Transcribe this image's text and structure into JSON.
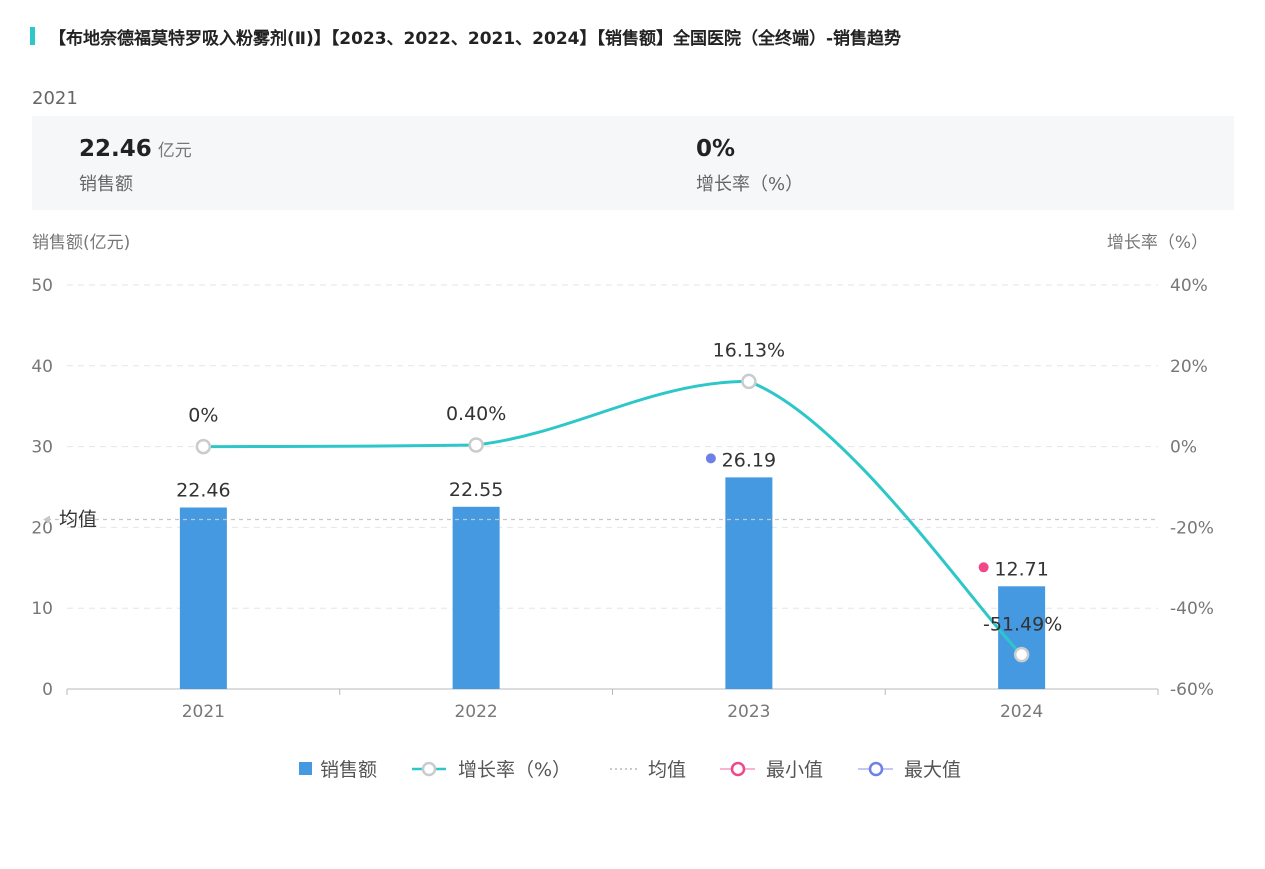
{
  "header": {
    "title": "【布地奈德福莫特罗吸入粉雾剂(Ⅱ)】【2023、2022、2021、2024】【销售额】全国医院（全终端）-销售趋势",
    "accent_color": "#2ec7c9"
  },
  "summary": {
    "year": "2021",
    "sales_value": "22.46",
    "sales_unit": "亿元",
    "sales_label": "销售额",
    "growth_value": "0%",
    "growth_label": "增长率（%）"
  },
  "chart_data": {
    "type": "bar",
    "categories": [
      "2021",
      "2022",
      "2023",
      "2024"
    ],
    "left_axis": {
      "label": "销售额(亿元)",
      "ylim": [
        0,
        50
      ],
      "ticks": [
        "0",
        "10",
        "20",
        "30",
        "40",
        "50"
      ]
    },
    "right_axis": {
      "label": "增长率（%）",
      "ylim": [
        -60,
        40
      ],
      "ticks": [
        "-60%",
        "-40%",
        "-20%",
        "0%",
        "20%",
        "40%"
      ]
    },
    "series": [
      {
        "name": "销售额",
        "type": "bar",
        "color": "#4599e0",
        "values": [
          22.46,
          22.55,
          26.19,
          12.71
        ],
        "labels": [
          "22.46",
          "22.55",
          "26.19",
          "12.71"
        ]
      },
      {
        "name": "增长率（%）",
        "type": "line",
        "color": "#2ec7c9",
        "values": [
          0,
          0.4,
          16.13,
          -51.49
        ],
        "labels": [
          "0%",
          "0.40%",
          "16.13%",
          "-51.49%"
        ]
      }
    ],
    "average": {
      "name": "均值",
      "label": "均值",
      "value": 20.98
    },
    "min_marker": {
      "name": "最小值",
      "color": "#f0468a",
      "category": "2024",
      "value": 12.71
    },
    "max_marker": {
      "name": "最大值",
      "color": "#6e7fe8",
      "category": "2023",
      "value": 26.19
    },
    "legend": [
      "销售额",
      "增长率（%）",
      "均值",
      "最小值",
      "最大值"
    ],
    "grid": true
  }
}
